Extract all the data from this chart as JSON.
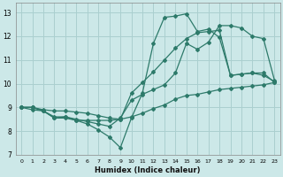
{
  "xlabel": "Humidex (Indice chaleur)",
  "bg_color": "#cce8e8",
  "grid_color": "#aacfcf",
  "line_color": "#2d7a6a",
  "xlim": [
    -0.5,
    23.5
  ],
  "ylim": [
    7,
    13.4
  ],
  "xticks": [
    0,
    1,
    2,
    3,
    4,
    5,
    6,
    7,
    8,
    9,
    10,
    11,
    12,
    13,
    14,
    15,
    16,
    17,
    18,
    19,
    20,
    21,
    22,
    23
  ],
  "yticks": [
    7,
    8,
    9,
    10,
    11,
    12,
    13
  ],
  "line1_x": [
    0,
    1,
    2,
    3,
    4,
    5,
    6,
    7,
    8,
    9,
    10,
    11,
    12,
    13,
    14,
    15,
    16,
    17,
    18,
    19,
    20,
    21,
    22,
    23
  ],
  "line1_y": [
    9.0,
    8.9,
    8.85,
    8.6,
    8.6,
    8.45,
    8.45,
    8.45,
    8.45,
    8.5,
    9.6,
    10.05,
    10.5,
    11.0,
    11.5,
    11.9,
    12.15,
    12.2,
    12.25,
    10.35,
    10.4,
    10.45,
    10.45,
    10.05
  ],
  "line2_x": [
    0,
    1,
    2,
    3,
    4,
    5,
    6,
    7,
    8,
    9,
    10,
    11,
    12,
    13,
    14,
    15,
    16,
    17,
    18,
    19,
    20,
    21,
    22,
    23
  ],
  "line2_y": [
    9.0,
    9.0,
    8.85,
    8.55,
    8.55,
    8.45,
    8.3,
    8.05,
    7.75,
    7.3,
    8.55,
    9.6,
    11.7,
    12.8,
    12.85,
    12.95,
    12.2,
    12.3,
    11.95,
    10.35,
    10.4,
    10.45,
    10.35,
    10.1
  ],
  "line3_x": [
    0,
    1,
    2,
    3,
    4,
    5,
    6,
    7,
    8,
    9,
    10,
    11,
    12,
    13,
    14,
    15,
    16,
    17,
    18,
    19,
    20,
    21,
    22,
    23
  ],
  "line3_y": [
    9.0,
    9.0,
    8.85,
    8.55,
    8.6,
    8.5,
    8.4,
    8.3,
    8.2,
    8.55,
    9.3,
    9.55,
    9.75,
    9.95,
    10.45,
    11.7,
    11.45,
    11.75,
    12.45,
    12.45,
    12.35,
    12.0,
    11.9,
    10.15
  ],
  "line4_x": [
    0,
    1,
    2,
    3,
    4,
    5,
    6,
    7,
    8,
    9,
    10,
    11,
    12,
    13,
    14,
    15,
    16,
    17,
    18,
    19,
    20,
    21,
    22,
    23
  ],
  "line4_y": [
    9.0,
    9.0,
    8.9,
    8.85,
    8.85,
    8.8,
    8.75,
    8.65,
    8.55,
    8.5,
    8.6,
    8.75,
    8.95,
    9.1,
    9.35,
    9.5,
    9.55,
    9.65,
    9.75,
    9.8,
    9.85,
    9.9,
    9.95,
    10.05
  ]
}
